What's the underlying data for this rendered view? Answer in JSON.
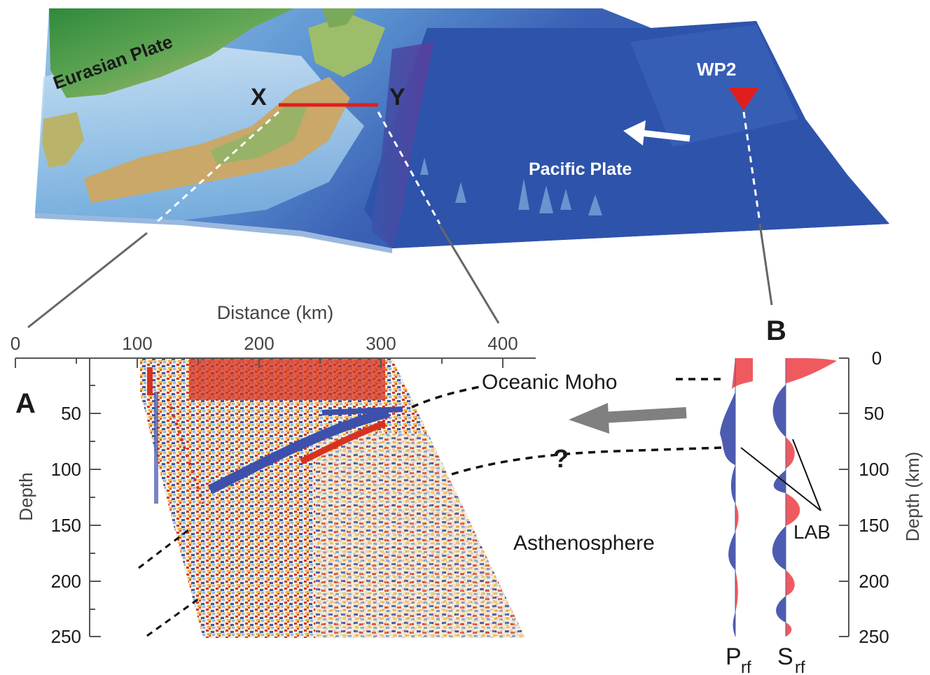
{
  "map": {
    "eurasian_label": "Eurasian Plate",
    "pacific_label": "Pacific Plate",
    "station_label": "WP2",
    "profile_start": "X",
    "profile_end": "Y"
  },
  "panel_a": {
    "letter": "A",
    "x_axis_title": "Distance (km)",
    "x_ticks": [
      "0",
      "100",
      "200",
      "300",
      "400"
    ],
    "y_axis_title": "Depth",
    "y_ticks": [
      "50",
      "100",
      "150",
      "200",
      "250"
    ]
  },
  "panel_b": {
    "letter": "B",
    "y_axis_title": "Depth (km)",
    "y_ticks": [
      "0",
      "50",
      "100",
      "150",
      "200",
      "250"
    ],
    "trace1_label": "P",
    "trace1_sub": "rf",
    "trace2_label": "S",
    "trace2_sub": "rf"
  },
  "annotations": {
    "oceanic_moho": "Oceanic Moho",
    "question": "?",
    "asthenosphere": "Asthenosphere",
    "lab": "LAB"
  },
  "colors": {
    "ocean_deep": "#2d4fa6",
    "ocean_shallow": "#7fb6e0",
    "land_green": "#3f9a44",
    "land_tan": "#d8b072",
    "profile_red": "#e01e1e",
    "positive_red": "#ef5a5f",
    "negative_blue": "#4d5cb0",
    "arrow_gray": "#808080"
  },
  "icons": [
    "station-triangle-icon",
    "plate-motion-arrow-icon"
  ]
}
